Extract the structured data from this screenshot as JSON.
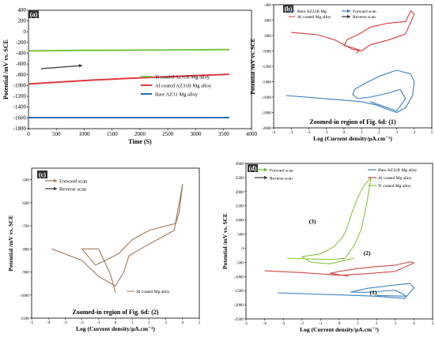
{
  "chart_data": [
    {
      "panel": "(a)",
      "type": "line",
      "xlabel": "Time (S)",
      "ylabel": "Potential /mV vs. SCE",
      "xlim": [
        0,
        4000
      ],
      "ylim": [
        -1800,
        400
      ],
      "xticks": [
        "0",
        "500",
        "1000",
        "1500",
        "2000",
        "2500",
        "3000",
        "3500",
        "4000"
      ],
      "yticks": [
        "400",
        "200",
        "0",
        "-200",
        "-400",
        "-600",
        "-800",
        "-1000",
        "-1200",
        "-1400",
        "-1600",
        "-1800"
      ],
      "series": [
        {
          "name": "Ti coated Az31B Mg alloy",
          "color": "#7ac143",
          "x": [
            0,
            1000,
            2000,
            3000,
            3600
          ],
          "y": [
            -355,
            -345,
            -340,
            -335,
            -330
          ]
        },
        {
          "name": "Al coated AZ31B Mg alloy",
          "color": "#e0393e",
          "x": [
            0,
            600,
            1200,
            1800,
            2400,
            3000,
            3600
          ],
          "y": [
            -970,
            -930,
            -895,
            -865,
            -840,
            -815,
            -790
          ]
        },
        {
          "name": "Bare AZ31 Mg alloy",
          "color": "#1f6fb5",
          "x": [
            0,
            1800,
            3600
          ],
          "y": [
            -1595,
            -1595,
            -1595
          ]
        }
      ],
      "legend": "right"
    },
    {
      "panel": "(b)",
      "type": "line",
      "xlabel": "Log (Current density/μA.cm⁻²)",
      "ylabel": "Potential /mV vs. SCE",
      "caption": "Zoomed-in region of Fig. 6d: (1)",
      "xlim": [
        -4,
        5
      ],
      "ylim": [
        -2000,
        -400
      ],
      "xticks": [
        "-4",
        "-3",
        "-2",
        "-1",
        "0",
        "1",
        "2",
        "3",
        "4",
        "5"
      ],
      "yticks": [
        "-400",
        "-600",
        "-800",
        "-1000",
        "-1200",
        "-1400",
        "-1600",
        "-1800",
        "-2000"
      ],
      "legend_series": [
        "Bare AZ31B Mg",
        "Al coated Mg alloy"
      ],
      "legend_scans": [
        "Forward scan",
        "Reverse scan"
      ],
      "series": [
        {
          "name": "Bare AZ31B Mg",
          "color": "#3a7fc0",
          "x": [
            -3.3,
            0.0,
            1.0,
            1.8,
            2.5,
            3.0,
            3.5,
            3.9,
            4.0,
            3.8,
            3.0,
            2.0,
            1.2,
            0.6,
            0.5,
            0.8,
            1.5,
            2.5,
            3.2,
            3.5,
            3.0,
            1.5
          ],
          "y": [
            -1580,
            -1640,
            -1660,
            -1700,
            -1760,
            -1800,
            -1740,
            -1580,
            -1400,
            -1300,
            -1250,
            -1330,
            -1420,
            -1500,
            -1570,
            -1620,
            -1600,
            -1550,
            -1500,
            -1620,
            -1780,
            -1660
          ]
        },
        {
          "name": "Al coated Mg alloy",
          "color": "#d93a3a",
          "x": [
            -3.0,
            -1.5,
            -0.5,
            0.5,
            1.0,
            1.5,
            2.5,
            3.5,
            4.0,
            3.8,
            3.5,
            2.5,
            1.5,
            0.8,
            0.2,
            0.0,
            0.5,
            0.9,
            0.7
          ],
          "y": [
            -760,
            -790,
            -860,
            -980,
            -1000,
            -920,
            -860,
            -780,
            -520,
            -480,
            -620,
            -640,
            -690,
            -790,
            -850,
            -930,
            -960,
            -990,
            -1030
          ]
        }
      ]
    },
    {
      "panel": "(c)",
      "type": "line",
      "xlabel": "Log (Current density/μA.cm⁻²)",
      "ylabel": "Potential /mV vs. SCE",
      "caption": "Zoomed-in region of Fig. 6d: (2)",
      "xlim": [
        -5,
        5
      ],
      "ylim": [
        -1100,
        -450
      ],
      "xticks": [
        "-5",
        "-4",
        "-3",
        "-2",
        "-1",
        "0",
        "1",
        "2",
        "3",
        "4",
        "5"
      ],
      "yticks": [
        "-500",
        "-600",
        "-700",
        "-800",
        "-900",
        "-1000",
        "-1100"
      ],
      "legend_scans": [
        "Forward scan",
        "Reverse scan"
      ],
      "series": [
        {
          "name": "Al coated Mg alloy",
          "color": "#a0785a",
          "x": [
            -3.8,
            -2.0,
            -1.0,
            0.0,
            0.5,
            0.8,
            1.5,
            2.5,
            3.5,
            4.0,
            3.8,
            3.6,
            3.0,
            2.0,
            1.0,
            0.2,
            -0.6,
            -1.2,
            -2.0,
            -1.0,
            -0.3,
            0.0
          ],
          "y": [
            -800,
            -850,
            -920,
            -960,
            -900,
            -830,
            -800,
            -760,
            -720,
            -520,
            -640,
            -690,
            -700,
            -720,
            -760,
            -820,
            -850,
            -870,
            -800,
            -800,
            -910,
            -990
          ]
        }
      ]
    },
    {
      "panel": "(d)",
      "type": "line",
      "xlabel": "Log (Current density/μA.cm⁻²)",
      "ylabel": "Potential /mV vs. SCE",
      "xlim": [
        -5,
        5
      ],
      "ylim": [
        -2500,
        3000
      ],
      "xticks": [
        "-5",
        "-4",
        "-3",
        "-2",
        "-1",
        "0",
        "1",
        "2",
        "3",
        "4",
        "5"
      ],
      "yticks": [
        "3000",
        "2500",
        "2000",
        "1500",
        "1000",
        "500",
        "0",
        "-500",
        "-1000",
        "-1500",
        "-2000",
        "-2500"
      ],
      "legend_scans": [
        "Forward scan",
        "Reverse scan"
      ],
      "legend_series": [
        "Bare AZ31B Mg alloy",
        "Al coated Mg alloy",
        "Ti coated Mg alloy"
      ],
      "annotations": [
        "(1)",
        "(2)",
        "(3)"
      ],
      "series": [
        {
          "name": "Bare AZ31B Mg alloy",
          "color": "#3a7fc0",
          "x": [
            -3.3,
            0.0,
            2.0,
            3.5,
            4.0,
            3.8,
            3.0,
            1.5,
            0.6,
            1.5,
            3.0,
            3.6,
            2.0
          ],
          "y": [
            -1580,
            -1650,
            -1700,
            -1780,
            -1400,
            -1250,
            -1300,
            -1420,
            -1550,
            -1560,
            -1480,
            -1700,
            -1670
          ]
        },
        {
          "name": "Al coated Mg alloy",
          "color": "#d04a4a",
          "x": [
            -4.0,
            -2.0,
            0.0,
            1.5,
            3.0,
            4.0,
            3.8,
            3.0,
            2.0,
            1.0,
            0.0,
            -0.5,
            0.5
          ],
          "y": [
            -800,
            -860,
            -960,
            -900,
            -820,
            -520,
            -480,
            -600,
            -650,
            -720,
            -820,
            -890,
            -990
          ]
        },
        {
          "name": "Ti coated Mg alloy",
          "color": "#8cc43f",
          "x": [
            -2.8,
            -1.5,
            -0.5,
            0.3,
            0.8,
            1.2,
            1.5,
            1.7,
            1.3,
            1.0,
            0.7,
            0.5,
            0.4,
            0.2,
            -0.3,
            -1.0,
            -2.0,
            -1.5,
            -0.5,
            0.5,
            0.6,
            0.8
          ],
          "y": [
            -350,
            -380,
            -400,
            -360,
            100,
            700,
            1700,
            2500,
            2200,
            1800,
            1300,
            900,
            700,
            400,
            50,
            -200,
            -300,
            -500,
            -550,
            -400,
            -380,
            -350
          ]
        }
      ]
    }
  ]
}
